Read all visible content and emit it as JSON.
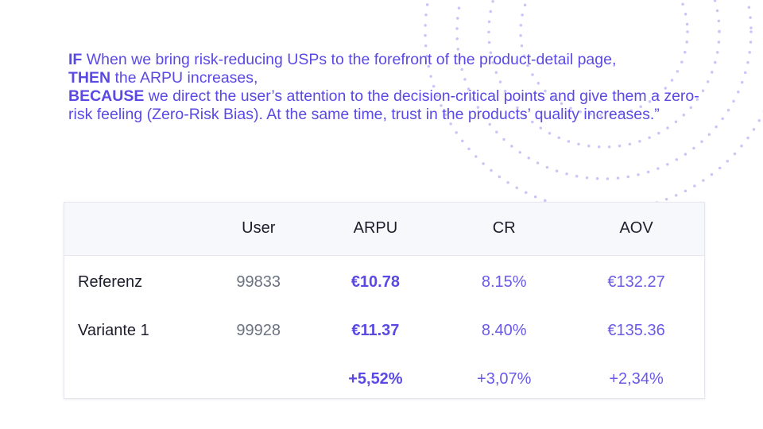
{
  "hypothesis": [
    {
      "keyword": "IF",
      "text": "When we bring risk-reducing USPs to the forefront of the product-detail page,"
    },
    {
      "keyword": "THEN",
      "text": "the ARPU increases,"
    },
    {
      "keyword": "BECAUSE",
      "text": "we direct the user’s attention to the decision-critical points and give them a zero-risk feeling (Zero-Risk Bias). At the same time, trust in the products’ quality increases.”"
    }
  ],
  "table": {
    "header": [
      "User",
      "ARPU",
      "CR",
      "AOV"
    ],
    "rows": [
      {
        "label": "Referenz",
        "cells": [
          "99833",
          "€10.78",
          "8.15%",
          "€132.27"
        ]
      },
      {
        "label": "Variante 1",
        "cells": [
          "99928",
          "€11.37",
          "8.40%",
          "€135.36"
        ]
      }
    ],
    "uplift": [
      "+5,52%",
      "+3,07%",
      "+2,34%"
    ]
  }
}
